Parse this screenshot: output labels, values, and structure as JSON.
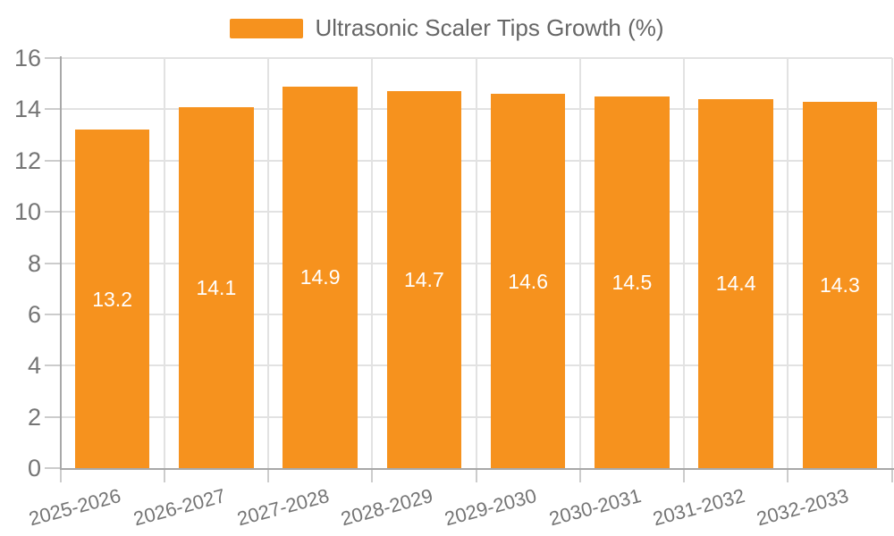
{
  "chart_data": {
    "type": "bar",
    "title": "Ultrasonic Scaler Tips Growth (%)",
    "categories": [
      "2025-2026",
      "2026-2027",
      "2027-2028",
      "2028-2029",
      "2029-2030",
      "2030-2031",
      "2031-2032",
      "2032-2033"
    ],
    "values": [
      13.2,
      14.1,
      14.9,
      14.7,
      14.6,
      14.5,
      14.4,
      14.3
    ],
    "xlabel": "",
    "ylabel": "",
    "ylim": [
      0,
      16
    ],
    "yticks": [
      0,
      2,
      4,
      6,
      8,
      10,
      12,
      14,
      16
    ],
    "grid": true,
    "legend_position": "top",
    "bar_color": "#F6921E",
    "value_label_color": "#FFFFFF",
    "axis_text_color": "#757575",
    "legend_text_color": "#666666",
    "gridline_color": "#E2E2E2",
    "axis_line_color": "#A8A8A8",
    "background_color": "#FFFFFF"
  }
}
